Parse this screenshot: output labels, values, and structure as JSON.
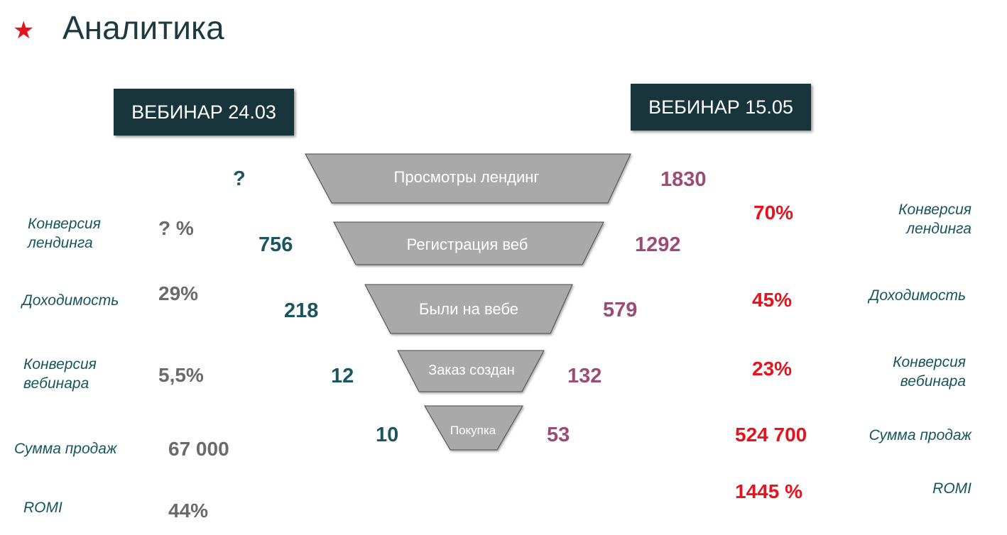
{
  "header": {
    "title": "Аналитика",
    "star_icon": "star-icon"
  },
  "webinars": {
    "left": "ВЕБИНАР 24.03",
    "right": "ВЕБИНАР 15.05"
  },
  "funnel": {
    "stages": [
      "Просмотры лендинг",
      "Регистрация веб",
      "Были на вебе",
      "Заказ создан",
      "Покупка"
    ],
    "left_values": [
      "?",
      "756",
      "218",
      "12",
      "10"
    ],
    "right_values": [
      "1830",
      "1292",
      "579",
      "132",
      "53"
    ]
  },
  "left_metrics": [
    {
      "label": "Конверсия\nлендинга",
      "value": "? %"
    },
    {
      "label": "Доходимость",
      "value": "29%"
    },
    {
      "label": "Конверсия\nвебинара",
      "value": "5,5%"
    },
    {
      "label": "Сумма продаж",
      "value": "67 000"
    },
    {
      "label": "ROMI",
      "value": "44%"
    }
  ],
  "right_metrics": [
    {
      "label": "Конверсия\nлендинга",
      "value": "70%"
    },
    {
      "label": "Доходимость",
      "value": "45%"
    },
    {
      "label": "Конверсия\nвебинара",
      "value": "23%"
    },
    {
      "label": "Сумма продаж",
      "value": "524 700"
    },
    {
      "label": "ROMI",
      "value": "1445 %"
    }
  ],
  "colors": {
    "badge_bg": "#17353b",
    "funnel_fill": "#a9a9a9",
    "accent_red": "#e5141c",
    "teal": "#1b5560",
    "mauve": "#9b4c76"
  }
}
